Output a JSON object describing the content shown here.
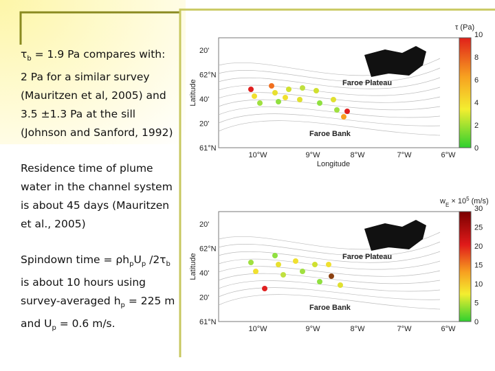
{
  "text_panel": {
    "paragraphs": [
      [
        [
          {
            "t": "τ"
          },
          {
            "sub": "b"
          },
          {
            "t": " = 1.9 Pa compares with:"
          }
        ],
        [
          {
            "t": "2 Pa for a similar survey"
          }
        ],
        [
          {
            "t": "(Mauritzen et al, 2005) and"
          }
        ],
        [
          {
            "t": "3.5 ±1.3 Pa at the sill"
          }
        ],
        [
          {
            "t": "(Johnson and Sanford, 1992)"
          }
        ]
      ],
      [
        [
          {
            "t": "Residence time of plume"
          }
        ],
        [
          {
            "t": "water in the channel system"
          }
        ],
        [
          {
            "t": "is about 45 days (Mauritzen"
          }
        ],
        [
          {
            "t": "et al., 2005)"
          }
        ]
      ],
      [
        [
          {
            "t": "Spindown time = ρh"
          },
          {
            "sub": "p"
          },
          {
            "t": "U"
          },
          {
            "sub": "p"
          },
          {
            "t": " /2τ"
          },
          {
            "sub": "b"
          }
        ],
        [
          {
            "t": "is about 10 hours using"
          }
        ],
        [
          {
            "t": "survey-averaged h"
          },
          {
            "sub": "p"
          },
          {
            "t": " = 225 m"
          }
        ],
        [
          {
            "t": "and U"
          },
          {
            "sub": "p"
          },
          {
            "t": " = 0.6 m/s."
          }
        ]
      ]
    ]
  },
  "maps": [
    {
      "colorbar_title": [
        {
          "t": "τ (Pa)"
        }
      ],
      "colorbar_ticks": [
        "10",
        "8",
        "6",
        "4",
        "2",
        "0"
      ],
      "lat_labels": [
        "20'",
        "62°N",
        "40'",
        "20'",
        "61°N"
      ],
      "lon_labels": [
        "10°W",
        "9°W",
        "8°W",
        "7°W",
        "6°W"
      ],
      "x_axis_label": "Longitude",
      "y_axis_label": "Latitude",
      "places": [
        "Faroe Plateau",
        "Faroe Bank"
      ]
    },
    {
      "colorbar_title": [
        {
          "t": "w"
        },
        {
          "sub": "E"
        },
        {
          "t": " × 10"
        },
        {
          "sup": "5"
        },
        {
          "t": " (m/s)"
        }
      ],
      "colorbar_ticks": [
        "30",
        "25",
        "20",
        "15",
        "10",
        "5",
        "0"
      ],
      "lat_labels": [
        "20'",
        "62°N",
        "40'",
        "20'",
        "61°N"
      ],
      "lon_labels": [
        "10°W",
        "9°W",
        "8°W",
        "7°W",
        "6°W"
      ],
      "y_axis_label": "Latitude",
      "places": [
        "Faroe Plateau",
        "Faroe Bank"
      ]
    }
  ]
}
